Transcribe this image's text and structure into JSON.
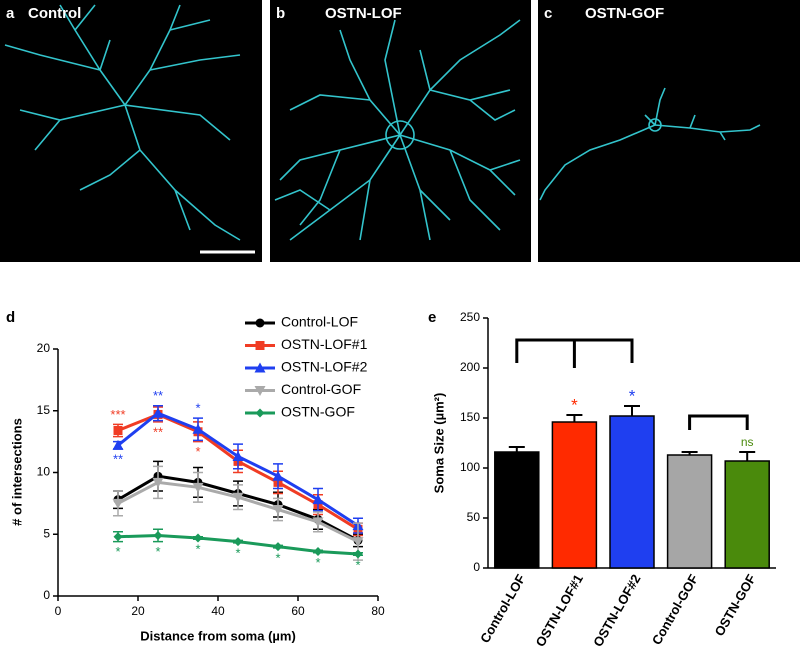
{
  "panels": [
    {
      "letter": "a",
      "title": "Control"
    },
    {
      "letter": "b",
      "title": "OSTN-LOF"
    },
    {
      "letter": "c",
      "title": "OSTN-GOF"
    }
  ],
  "chart_data": [
    {
      "type": "line",
      "panel": "d",
      "x_label": "Distance from soma (µm)",
      "y_label": "# of intersections",
      "x": [
        15,
        25,
        35,
        45,
        55,
        65,
        75
      ],
      "xlim": [
        0,
        80
      ],
      "xticks": [
        0,
        20,
        40,
        60,
        80
      ],
      "ylim": [
        0,
        20
      ],
      "yticks": [
        0,
        5,
        10,
        15,
        20
      ],
      "series": [
        {
          "name": "Control-LOF",
          "color": "#000000",
          "marker": "circle",
          "values": [
            7.8,
            9.7,
            9.2,
            8.3,
            7.4,
            6.2,
            4.5
          ],
          "errors": [
            0.7,
            1.2,
            1.2,
            1.0,
            1.0,
            0.8,
            0.5
          ],
          "significance": [
            null,
            null,
            null,
            null,
            null,
            null,
            null
          ]
        },
        {
          "name": "OSTN-LOF#1",
          "color": "#f03c24",
          "marker": "square",
          "values": [
            13.4,
            14.7,
            13.3,
            10.9,
            9.2,
            7.4,
            5.4
          ],
          "errors": [
            0.5,
            0.6,
            0.8,
            0.9,
            0.9,
            0.8,
            0.5
          ],
          "significance": [
            "***",
            "**",
            "*",
            null,
            null,
            null,
            null
          ]
        },
        {
          "name": "OSTN-LOF#2",
          "color": "#1f3ff0",
          "marker": "triangle",
          "values": [
            12.2,
            14.8,
            13.5,
            11.3,
            9.7,
            7.8,
            5.7
          ],
          "errors": [
            0.3,
            0.6,
            0.9,
            1.0,
            1.0,
            0.9,
            0.6
          ],
          "significance": [
            "**",
            "**",
            "*",
            null,
            null,
            null,
            null
          ]
        },
        {
          "name": "Control-GOF",
          "color": "#aaaaaa",
          "marker": "down-triangle",
          "values": [
            7.5,
            9.2,
            8.8,
            8.0,
            7.0,
            6.0,
            4.4
          ],
          "errors": [
            1.0,
            1.3,
            1.2,
            1.0,
            0.9,
            0.8,
            1.5
          ],
          "significance": [
            null,
            null,
            null,
            null,
            null,
            null,
            null
          ]
        },
        {
          "name": "OSTN-GOF",
          "color": "#1a9a5a",
          "marker": "diamond",
          "values": [
            4.8,
            4.9,
            4.7,
            4.4,
            4.0,
            3.6,
            3.4
          ],
          "errors": [
            0.4,
            0.5,
            0.1,
            0.1,
            0.1,
            0.1,
            0.1
          ],
          "significance": [
            "*",
            "*",
            "*",
            "*",
            "*",
            "*",
            "*"
          ]
        }
      ]
    },
    {
      "type": "bar",
      "panel": "e",
      "y_label": "Soma Size (µm²)",
      "categories": [
        "Control-LOF",
        "OSTN-LOF#1",
        "OSTN-LOF#2",
        "Control-GOF",
        "OSTN-GOF"
      ],
      "values": [
        116,
        146,
        152,
        113,
        107
      ],
      "errors": [
        5,
        7,
        10,
        3,
        9
      ],
      "colors": [
        "#000000",
        "#ff2a00",
        "#1f3ff0",
        "#a6a6a6",
        "#4a8a0c"
      ],
      "significance": [
        null,
        "*",
        "*",
        null,
        "ns"
      ],
      "significance_colors": [
        null,
        "#ff2a00",
        "#1f3ff0",
        null,
        "#4a8a0c"
      ],
      "ylim": [
        0,
        250
      ],
      "yticks": [
        0,
        50,
        100,
        150,
        200,
        250
      ]
    }
  ]
}
